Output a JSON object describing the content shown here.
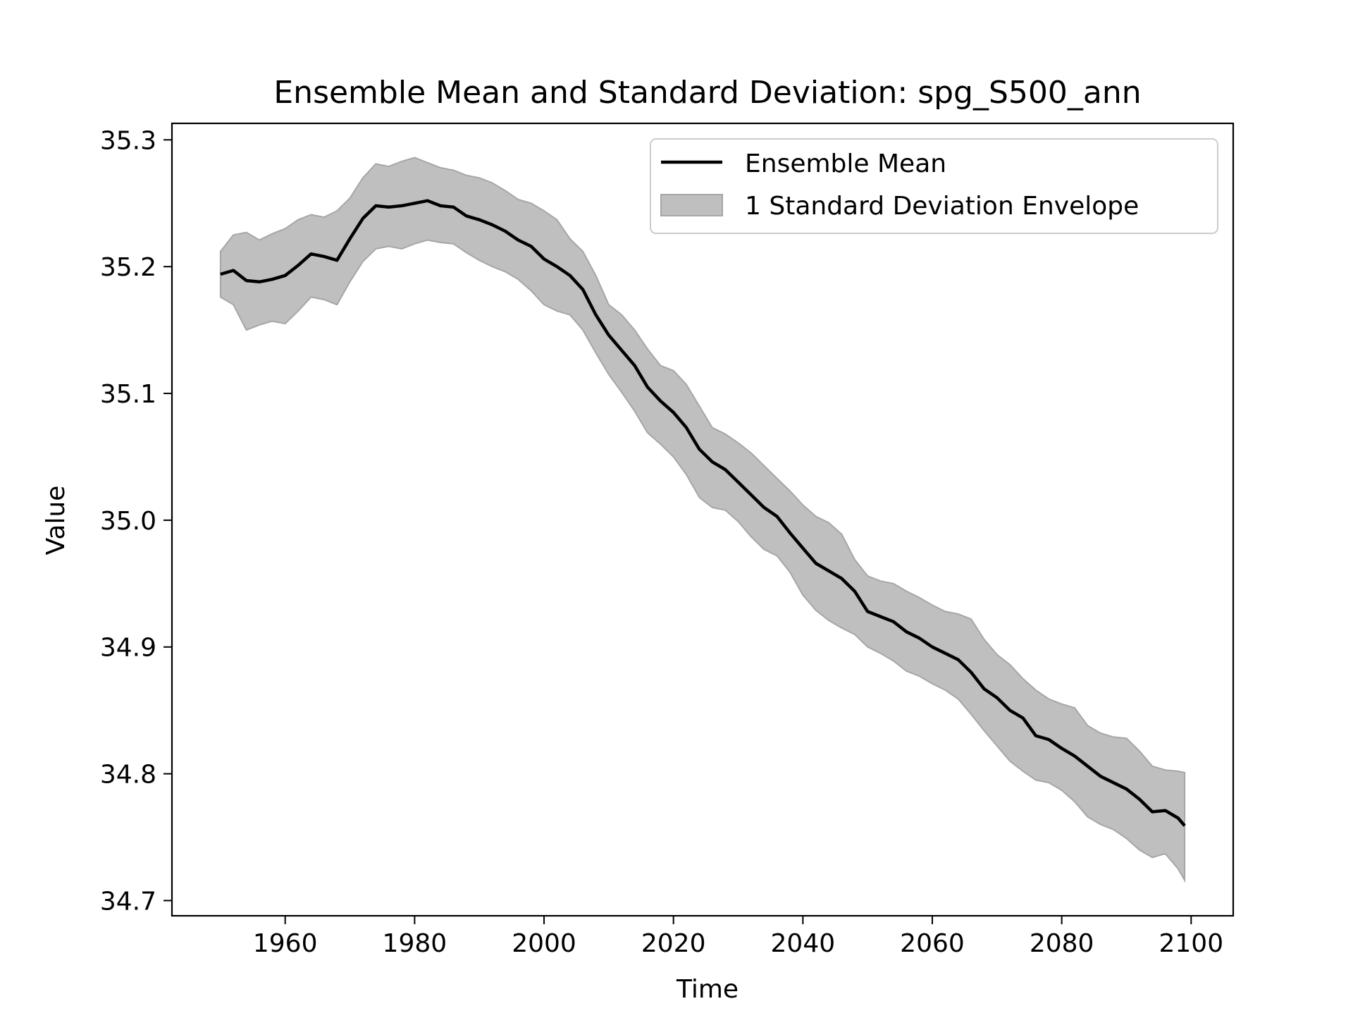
{
  "chart_data": {
    "type": "line",
    "title": "Ensemble Mean and Standard Deviation: spg_S500_ann",
    "xlabel": "Time",
    "ylabel": "Value",
    "xlim": [
      1942.5,
      2106.5
    ],
    "ylim": [
      34.688,
      35.313
    ],
    "xticks": [
      1960,
      1980,
      2000,
      2020,
      2040,
      2060,
      2080,
      2100
    ],
    "yticks": [
      34.7,
      34.8,
      34.9,
      35.0,
      35.1,
      35.2,
      35.3
    ],
    "xtick_labels": [
      "1960",
      "1980",
      "2000",
      "2020",
      "2040",
      "2060",
      "2080",
      "2100"
    ],
    "ytick_labels": [
      "34.7",
      "34.8",
      "34.9",
      "35.0",
      "35.1",
      "35.2",
      "35.3"
    ],
    "grid": false,
    "legend_position": "top-right",
    "legend": [
      {
        "label": "Ensemble Mean",
        "kind": "line",
        "color": "#000000"
      },
      {
        "label": "1 Standard Deviation Envelope",
        "kind": "patch",
        "color": "#bfbfbf"
      }
    ],
    "x": [
      1950,
      1952,
      1954,
      1956,
      1958,
      1960,
      1962,
      1964,
      1966,
      1968,
      1970,
      1972,
      1974,
      1976,
      1978,
      1980,
      1982,
      1984,
      1986,
      1988,
      1990,
      1992,
      1994,
      1996,
      1998,
      2000,
      2002,
      2004,
      2006,
      2008,
      2010,
      2012,
      2014,
      2016,
      2018,
      2020,
      2022,
      2024,
      2026,
      2028,
      2030,
      2032,
      2034,
      2036,
      2038,
      2040,
      2042,
      2044,
      2046,
      2048,
      2050,
      2052,
      2054,
      2056,
      2058,
      2060,
      2062,
      2064,
      2066,
      2068,
      2070,
      2072,
      2074,
      2076,
      2078,
      2080,
      2082,
      2084,
      2086,
      2088,
      2090,
      2092,
      2094,
      2096,
      2098,
      2099
    ],
    "series": [
      {
        "name": "Ensemble Mean",
        "color": "#000000",
        "values": [
          35.194,
          35.197,
          35.189,
          35.188,
          35.19,
          35.193,
          35.201,
          35.21,
          35.208,
          35.205,
          35.222,
          35.238,
          35.248,
          35.247,
          35.248,
          35.25,
          35.252,
          35.248,
          35.247,
          35.24,
          35.237,
          35.233,
          35.228,
          35.221,
          35.216,
          35.206,
          35.2,
          35.193,
          35.182,
          35.162,
          35.146,
          35.134,
          35.122,
          35.105,
          35.094,
          35.085,
          35.073,
          35.056,
          35.046,
          35.04,
          35.03,
          35.02,
          35.01,
          35.003,
          34.99,
          34.978,
          34.966,
          34.96,
          34.954,
          34.944,
          34.928,
          34.924,
          34.92,
          34.912,
          34.907,
          34.9,
          34.895,
          34.89,
          34.88,
          34.867,
          34.86,
          34.85,
          34.844,
          34.83,
          34.827,
          34.82,
          34.814,
          34.806,
          34.798,
          34.793,
          34.788,
          34.78,
          34.77,
          34.771,
          34.765,
          34.759
        ]
      },
      {
        "name": "1 Standard Deviation Envelope",
        "color": "#bfbfbf",
        "upper": [
          35.212,
          35.225,
          35.227,
          35.221,
          35.226,
          35.23,
          35.237,
          35.241,
          35.239,
          35.244,
          35.254,
          35.27,
          35.281,
          35.279,
          35.283,
          35.286,
          35.282,
          35.278,
          35.276,
          35.272,
          35.27,
          35.266,
          35.26,
          35.253,
          35.25,
          35.244,
          35.237,
          35.222,
          35.212,
          35.193,
          35.17,
          35.162,
          35.15,
          35.135,
          35.122,
          35.118,
          35.107,
          35.09,
          35.073,
          35.068,
          35.061,
          35.053,
          35.043,
          35.033,
          35.023,
          35.012,
          35.003,
          34.998,
          34.989,
          34.969,
          34.956,
          34.952,
          34.95,
          34.944,
          34.939,
          34.933,
          34.928,
          34.926,
          34.922,
          34.906,
          34.894,
          34.886,
          34.875,
          34.866,
          34.859,
          34.855,
          34.852,
          34.838,
          34.832,
          34.829,
          34.828,
          34.818,
          34.806,
          34.803,
          34.802,
          34.801
        ],
        "lower": [
          35.176,
          35.17,
          35.15,
          35.154,
          35.157,
          35.155,
          35.165,
          35.176,
          35.174,
          35.17,
          35.188,
          35.204,
          35.214,
          35.216,
          35.214,
          35.218,
          35.221,
          35.219,
          35.218,
          35.211,
          35.205,
          35.2,
          35.196,
          35.19,
          35.181,
          35.17,
          35.165,
          35.162,
          35.15,
          35.132,
          35.115,
          35.101,
          35.086,
          35.069,
          35.06,
          35.05,
          35.036,
          35.018,
          35.01,
          35.008,
          34.999,
          34.987,
          34.977,
          34.972,
          34.959,
          34.941,
          34.929,
          34.921,
          34.915,
          34.91,
          34.9,
          34.895,
          34.889,
          34.881,
          34.877,
          34.871,
          34.866,
          34.859,
          34.847,
          34.834,
          34.822,
          34.81,
          34.802,
          34.795,
          34.793,
          34.787,
          34.778,
          34.766,
          34.76,
          34.756,
          34.749,
          34.74,
          34.734,
          34.737,
          34.725,
          34.716
        ]
      }
    ]
  }
}
